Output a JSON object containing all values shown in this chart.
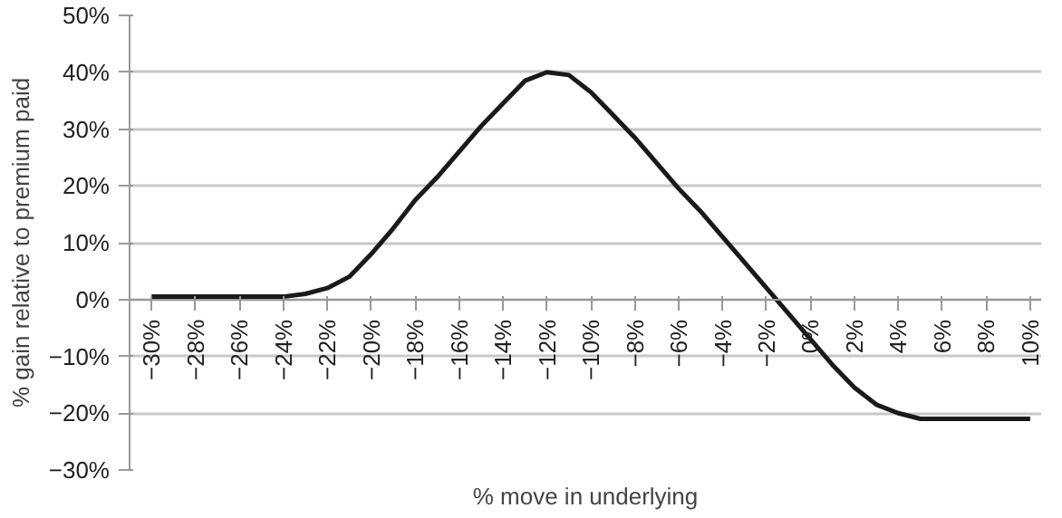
{
  "chart_data": {
    "type": "line",
    "xlabel": "% move in underlying",
    "ylabel": "% gain relative to premium paid",
    "x": [
      -30,
      -29,
      -28,
      -27,
      -26,
      -25,
      -24,
      -23,
      -22,
      -21,
      -20,
      -19,
      -18,
      -17,
      -16,
      -15,
      -14,
      -13,
      -12,
      -11,
      -10,
      -9,
      -8,
      -7,
      -6,
      -5,
      -4,
      -3,
      -2,
      -1,
      0,
      1,
      2,
      3,
      4,
      5,
      6,
      7,
      8,
      9,
      10
    ],
    "series": [
      {
        "color": "#1a1a1a",
        "values": [
          0.5,
          0.5,
          0.5,
          0.5,
          0.5,
          0.5,
          0.5,
          1,
          2,
          4,
          8,
          12.5,
          17.5,
          21.5,
          26,
          30.5,
          34.5,
          38.5,
          40,
          39.5,
          36.5,
          32.5,
          28.5,
          24,
          19.5,
          15.5,
          11,
          6.5,
          2,
          -2.5,
          -7,
          -11.5,
          -15.5,
          -18.5,
          -20,
          -21,
          -21,
          -21,
          -21,
          -21,
          -21
        ]
      }
    ],
    "xlim": [
      -31,
      10.5
    ],
    "xticks": [
      {
        "value": -30,
        "label": "−30%"
      },
      {
        "value": -28,
        "label": "−28%"
      },
      {
        "value": -26,
        "label": "−26%"
      },
      {
        "value": -24,
        "label": "−24%"
      },
      {
        "value": -22,
        "label": "−22%"
      },
      {
        "value": -20,
        "label": "−20%"
      },
      {
        "value": -18,
        "label": "−18%"
      },
      {
        "value": -16,
        "label": "−16%"
      },
      {
        "value": -14,
        "label": "−14%"
      },
      {
        "value": -12,
        "label": "−12%"
      },
      {
        "value": -10,
        "label": "−10%"
      },
      {
        "value": -8,
        "label": "−8%"
      },
      {
        "value": -6,
        "label": "−6%"
      },
      {
        "value": -4,
        "label": "−4%"
      },
      {
        "value": -2,
        "label": "−2%"
      },
      {
        "value": 0,
        "label": "0%"
      },
      {
        "value": 2,
        "label": "2%"
      },
      {
        "value": 4,
        "label": "4%"
      },
      {
        "value": 6,
        "label": "6%"
      },
      {
        "value": 8,
        "label": "8%"
      },
      {
        "value": 10,
        "label": "10%"
      }
    ],
    "ylim": [
      -30,
      50
    ],
    "yticks": [
      {
        "value": -30,
        "label": "−30%"
      },
      {
        "value": -20,
        "label": "−20%"
      },
      {
        "value": -10,
        "label": "−10%"
      },
      {
        "value": 0,
        "label": "0%"
      },
      {
        "value": 10,
        "label": "10%"
      },
      {
        "value": 20,
        "label": "20%"
      },
      {
        "value": 30,
        "label": "30%"
      },
      {
        "value": 40,
        "label": "40%"
      },
      {
        "value": 50,
        "label": "50%"
      }
    ],
    "grid": "y",
    "marker": "none",
    "line_style": "solid"
  }
}
